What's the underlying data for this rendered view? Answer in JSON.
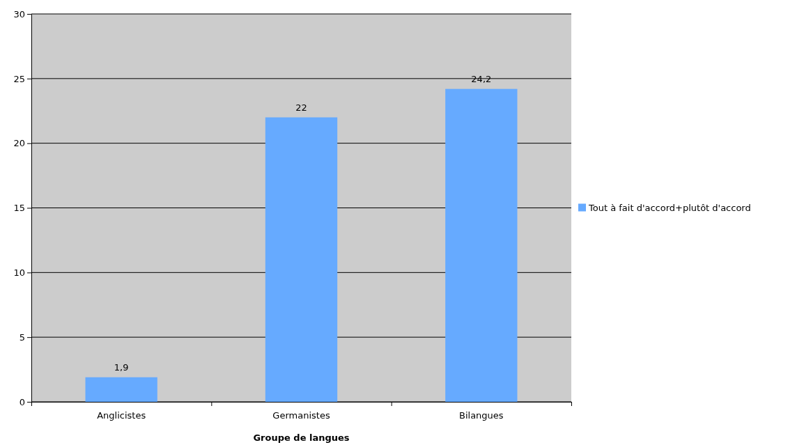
{
  "chart_data": {
    "type": "bar",
    "xlabel": "Groupe de langues",
    "categories": [
      "Anglicistes",
      "Germanistes",
      "Bilangues"
    ],
    "series": [
      {
        "name": "Tout à fait d'accord+plutôt d'accord",
        "color": "#66aaff",
        "values": [
          1.9,
          22,
          24.2
        ],
        "value_labels": [
          "1,9",
          "22",
          "24,2"
        ]
      }
    ],
    "ylim": [
      0,
      30
    ],
    "yticks": [
      0,
      5,
      10,
      15,
      20,
      25,
      30
    ],
    "grid": "y",
    "legend": "right"
  }
}
